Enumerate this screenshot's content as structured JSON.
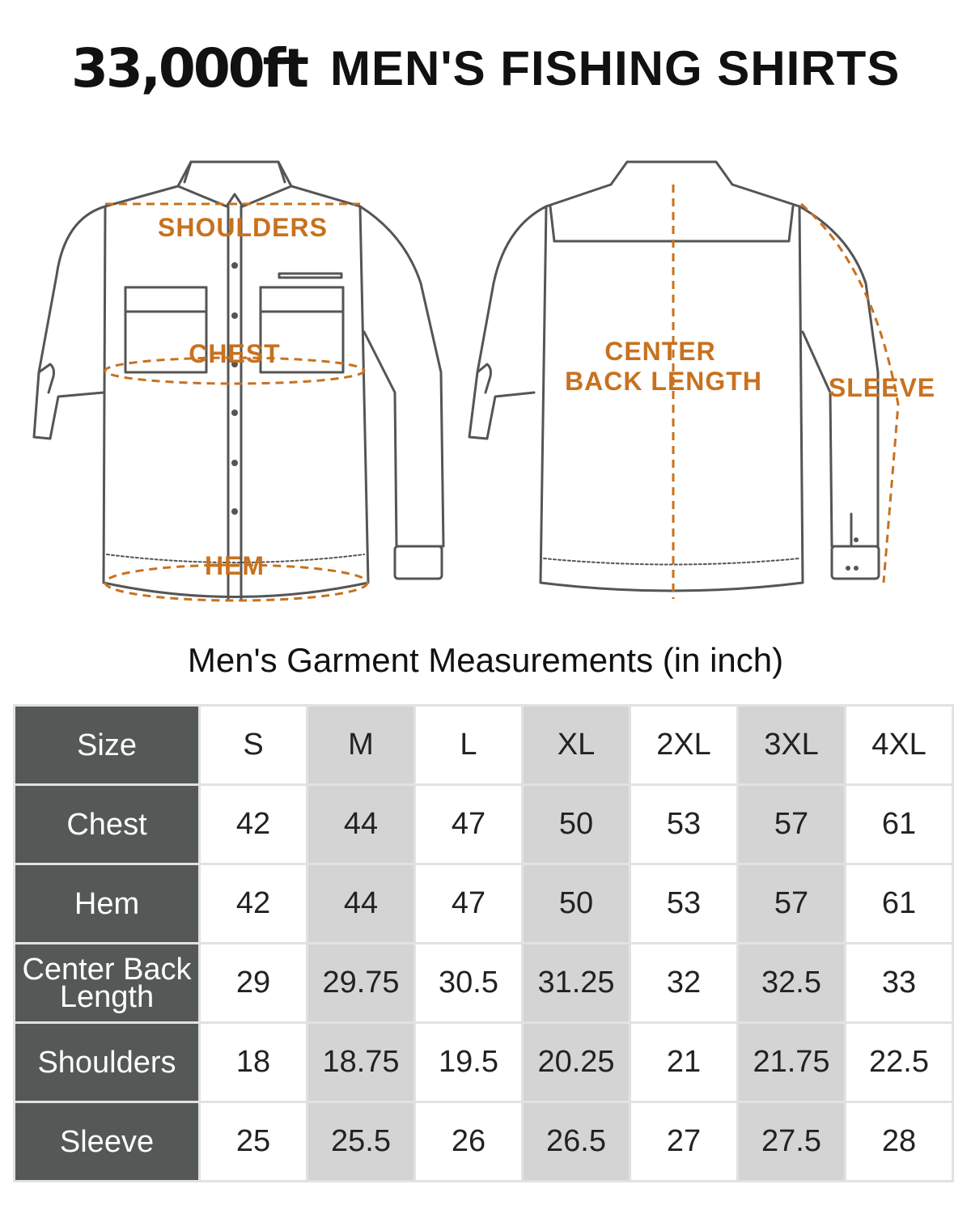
{
  "header": {
    "brand": "33,000ft",
    "title": "MEN'S FISHING SHIRTS"
  },
  "diagram": {
    "front_labels": [
      "SHOULDERS",
      "CHEST",
      "HEM"
    ],
    "back_labels": [
      "CENTER",
      "BACK LENGTH",
      "SLEEVE"
    ],
    "accent_color": "#c8711f",
    "line_color": "#555555"
  },
  "table": {
    "title": "Men's Garment Measurements (in inch)",
    "header_label": "Size",
    "sizes": [
      "S",
      "M",
      "L",
      "XL",
      "2XL",
      "3XL",
      "4XL"
    ],
    "rows": [
      {
        "label": "Chest",
        "values": [
          "42",
          "44",
          "47",
          "50",
          "53",
          "57",
          "61"
        ]
      },
      {
        "label": "Hem",
        "values": [
          "42",
          "44",
          "47",
          "50",
          "53",
          "57",
          "61"
        ]
      },
      {
        "label": "Center Back Length",
        "values": [
          "29",
          "29.75",
          "30.5",
          "31.25",
          "32",
          "32.5",
          "33"
        ]
      },
      {
        "label": "Shoulders",
        "values": [
          "18",
          "18.75",
          "19.5",
          "20.25",
          "21",
          "21.75",
          "22.5"
        ]
      },
      {
        "label": "Sleeve",
        "values": [
          "25",
          "25.5",
          "26",
          "26.5",
          "27",
          "27.5",
          "28"
        ]
      }
    ],
    "header_bg": "#545856",
    "shade_bg": "#d4d4d4"
  }
}
